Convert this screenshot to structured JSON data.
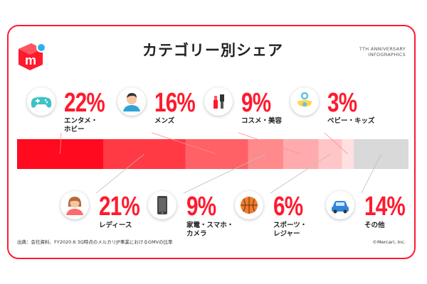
{
  "header": {
    "title": "カテゴリー別シェア",
    "tagline_line1": "7TH ANNIVERSARY",
    "tagline_line2": "INFOGRAPHICS"
  },
  "logo": {
    "letter": "m"
  },
  "footer": {
    "source": "出典：会社資料、FY2020.6 3Q時点のメルカリJP事業におけるGMVの比率",
    "copyright": "©Mercari, Inc."
  },
  "colors": {
    "accent": "#ff1a2e",
    "segments": [
      "#ff0a1e",
      "#ff3a45",
      "#ff6166",
      "#ff8a8c",
      "#ffabad",
      "#ffc5c7",
      "#ffe0e1",
      "#d9d9d9"
    ]
  },
  "categories": [
    {
      "pct_label": "22%",
      "label_lines": [
        "エンタメ・",
        "ホビー"
      ],
      "icon": "gamepad-icon"
    },
    {
      "pct_label": "16%",
      "label_lines": [
        "メンズ"
      ],
      "icon": "man-avatar-icon"
    },
    {
      "pct_label": "9%",
      "label_lines": [
        "コスメ・美容"
      ],
      "icon": "cosmetics-icon"
    },
    {
      "pct_label": "3%",
      "label_lines": [
        "ベビー・キッズ"
      ],
      "icon": "pacifier-icon"
    },
    {
      "pct_label": "21%",
      "label_lines": [
        "レディース"
      ],
      "icon": "woman-avatar-icon"
    },
    {
      "pct_label": "9%",
      "label_lines": [
        "家電・スマホ・",
        "カメラ"
      ],
      "icon": "smartphone-icon"
    },
    {
      "pct_label": "6%",
      "label_lines": [
        "スポーツ・",
        "レジャー"
      ],
      "icon": "basketball-icon"
    },
    {
      "pct_label": "14%",
      "label_lines": [
        "その他"
      ],
      "icon": "car-icon"
    }
  ],
  "chart_data": {
    "type": "bar",
    "title": "カテゴリー別シェア",
    "orientation": "horizontal-stacked",
    "categories": [
      "エンタメ・ホビー",
      "レディース",
      "メンズ",
      "家電・スマホ・カメラ",
      "コスメ・美容",
      "スポーツ・レジャー",
      "ベビー・キッズ",
      "その他"
    ],
    "values": [
      22,
      21,
      16,
      9,
      9,
      6,
      3,
      14
    ],
    "units": "%"
  }
}
